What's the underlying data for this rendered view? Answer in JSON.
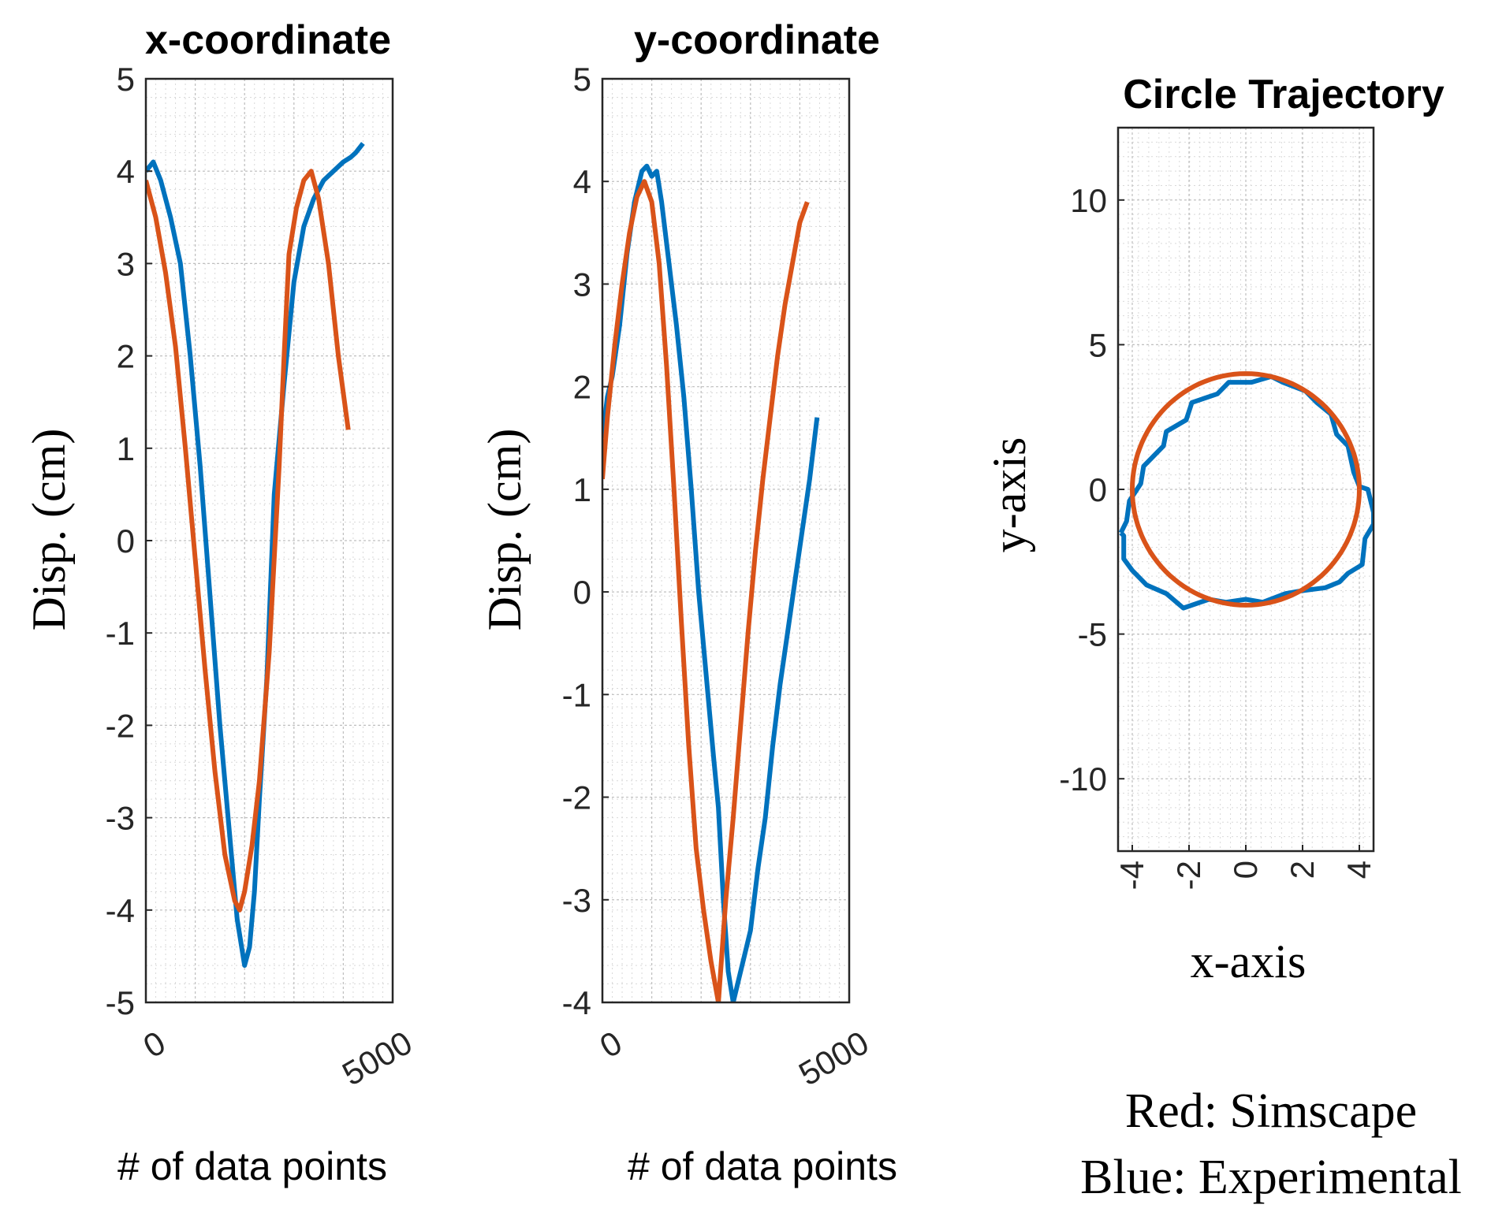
{
  "colors": {
    "experimental": "#0072BD",
    "simscape": "#D95319",
    "grid_major": "#bfbfbf",
    "grid_minor": "#d9d9d9",
    "axis": "#262626"
  },
  "legend": {
    "line1": "Red: Simscape",
    "line2": "Blue: Experimental"
  },
  "chart_data": [
    {
      "type": "line",
      "title": "x-coordinate",
      "xlabel": "# of data points",
      "ylabel": "Disp. (cm)",
      "xlim": [
        0,
        5000
      ],
      "ylim": [
        -5,
        5
      ],
      "xticks": [
        0,
        5000
      ],
      "xtick_labels": [
        "0",
        "5000"
      ],
      "yticks": [
        -5,
        -4,
        -3,
        -2,
        -1,
        0,
        1,
        2,
        3,
        4,
        5
      ],
      "ytick_labels": [
        "-5",
        "-4",
        "-3",
        "-2",
        "-1",
        "0",
        "1",
        "2",
        "3",
        "4",
        "5"
      ],
      "grid": "major+minor",
      "series": [
        {
          "name": "Experimental",
          "color_key": "experimental",
          "x": [
            0,
            150,
            300,
            500,
            700,
            900,
            1100,
            1300,
            1500,
            1700,
            1850,
            2000,
            2100,
            2200,
            2300,
            2450,
            2600,
            2800,
            3000,
            3200,
            3400,
            3600,
            3800,
            4000,
            4150,
            4250,
            4400
          ],
          "y": [
            4.0,
            4.1,
            3.9,
            3.5,
            3.0,
            2.0,
            0.8,
            -0.6,
            -2.0,
            -3.2,
            -4.1,
            -4.6,
            -4.4,
            -3.8,
            -2.8,
            -1.5,
            0.5,
            1.7,
            2.8,
            3.4,
            3.7,
            3.9,
            4.0,
            4.1,
            4.15,
            4.2,
            4.3
          ]
        },
        {
          "name": "Simscape",
          "color_key": "simscape",
          "x": [
            0,
            200,
            400,
            600,
            800,
            1000,
            1200,
            1400,
            1600,
            1800,
            1900,
            2000,
            2150,
            2300,
            2500,
            2700,
            2800,
            2900,
            3050,
            3200,
            3350,
            3500,
            3700,
            3900,
            4100
          ],
          "y": [
            3.9,
            3.5,
            2.9,
            2.1,
            1.0,
            -0.2,
            -1.4,
            -2.5,
            -3.4,
            -3.9,
            -4.0,
            -3.8,
            -3.3,
            -2.6,
            -1.2,
            0.8,
            2.0,
            3.1,
            3.6,
            3.9,
            4.0,
            3.7,
            3.0,
            2.0,
            1.2
          ]
        }
      ]
    },
    {
      "type": "line",
      "title": "y-coordinate",
      "xlabel": "# of data points",
      "ylabel": "Disp. (cm)",
      "xlim": [
        0,
        5000
      ],
      "ylim": [
        -4,
        5
      ],
      "xticks": [
        0,
        5000
      ],
      "xtick_labels": [
        "0",
        "5000"
      ],
      "yticks": [
        -4,
        -3,
        -2,
        -1,
        0,
        1,
        2,
        3,
        4,
        5
      ],
      "ytick_labels": [
        "-4",
        "-3",
        "-2",
        "-1",
        "0",
        "1",
        "2",
        "3",
        "4",
        "5"
      ],
      "grid": "major+minor",
      "series": [
        {
          "name": "Experimental",
          "color_key": "experimental",
          "x": [
            0,
            100,
            200,
            350,
            500,
            650,
            800,
            900,
            1000,
            1100,
            1200,
            1350,
            1500,
            1650,
            1800,
            1950,
            2100,
            2250,
            2350,
            2450,
            2550,
            2650,
            2750,
            2850,
            3000,
            3150,
            3300,
            3450,
            3600,
            3750,
            3900,
            4050,
            4200,
            4350
          ],
          "y": [
            1.5,
            1.9,
            2.1,
            2.6,
            3.3,
            3.8,
            4.1,
            4.15,
            4.05,
            4.1,
            3.8,
            3.2,
            2.6,
            1.9,
            1.0,
            0.0,
            -0.8,
            -1.6,
            -2.1,
            -3.0,
            -3.7,
            -4.0,
            -3.8,
            -3.6,
            -3.3,
            -2.7,
            -2.2,
            -1.5,
            -0.9,
            -0.4,
            0.1,
            0.6,
            1.1,
            1.7
          ]
        },
        {
          "name": "Simscape",
          "color_key": "simscape",
          "x": [
            0,
            100,
            250,
            400,
            550,
            700,
            850,
            1000,
            1150,
            1300,
            1450,
            1600,
            1750,
            1900,
            2050,
            2200,
            2350,
            2500,
            2650,
            2800,
            2950,
            3100,
            3250,
            3400,
            3550,
            3700,
            3850,
            4000,
            4150
          ],
          "y": [
            1.1,
            1.7,
            2.4,
            3.0,
            3.5,
            3.85,
            4.0,
            3.8,
            3.2,
            2.2,
            1.0,
            -0.3,
            -1.5,
            -2.5,
            -3.1,
            -3.6,
            -4.0,
            -3.0,
            -2.2,
            -1.3,
            -0.4,
            0.4,
            1.1,
            1.7,
            2.3,
            2.8,
            3.2,
            3.6,
            3.8
          ]
        }
      ]
    },
    {
      "type": "line",
      "title": "Circle Trajectory",
      "xlabel": "x-axis",
      "ylabel": "y-axis",
      "xlim": [
        -4.5,
        4.5
      ],
      "ylim": [
        -12.5,
        12.5
      ],
      "xticks": [
        -4,
        -2,
        0,
        2,
        4
      ],
      "xtick_labels": [
        "-4",
        "-2",
        "0",
        "2",
        "4"
      ],
      "yticks": [
        -10,
        -5,
        0,
        5,
        10
      ],
      "ytick_labels": [
        "-10",
        "-5",
        "0",
        "5",
        "10"
      ],
      "grid": "major+minor",
      "series": [
        {
          "name": "Experimental",
          "color_key": "experimental",
          "x": [
            -4.4,
            -4.2,
            -4.1,
            -3.7,
            -3.6,
            -2.9,
            -2.8,
            -2.1,
            -1.9,
            -1.0,
            -0.6,
            0.2,
            0.9,
            1.3,
            2.1,
            2.5,
            3.0,
            3.2,
            3.6,
            3.8,
            4.0,
            4.3,
            4.5,
            4.5,
            4.2,
            4.1,
            3.6,
            3.3,
            2.8,
            2.0,
            1.4,
            0.6,
            0.0,
            -0.7,
            -1.3,
            -2.2,
            -2.8,
            -3.5,
            -4.0,
            -4.3,
            -4.3,
            -4.4
          ],
          "y": [
            -1.5,
            -1.1,
            -0.4,
            0.2,
            0.8,
            1.5,
            2.0,
            2.4,
            3.0,
            3.3,
            3.7,
            3.7,
            3.9,
            3.7,
            3.4,
            3.0,
            2.6,
            1.9,
            1.5,
            0.6,
            0.1,
            0.0,
            -0.8,
            -1.2,
            -1.7,
            -2.6,
            -2.9,
            -3.2,
            -3.4,
            -3.5,
            -3.6,
            -3.9,
            -3.8,
            -3.9,
            -3.8,
            -4.1,
            -3.6,
            -3.3,
            -2.8,
            -2.4,
            -1.6,
            -1.5
          ]
        },
        {
          "name": "Simscape",
          "color_key": "simscape",
          "shape": "circle",
          "center": [
            0,
            0
          ],
          "radius": 4
        }
      ]
    }
  ]
}
